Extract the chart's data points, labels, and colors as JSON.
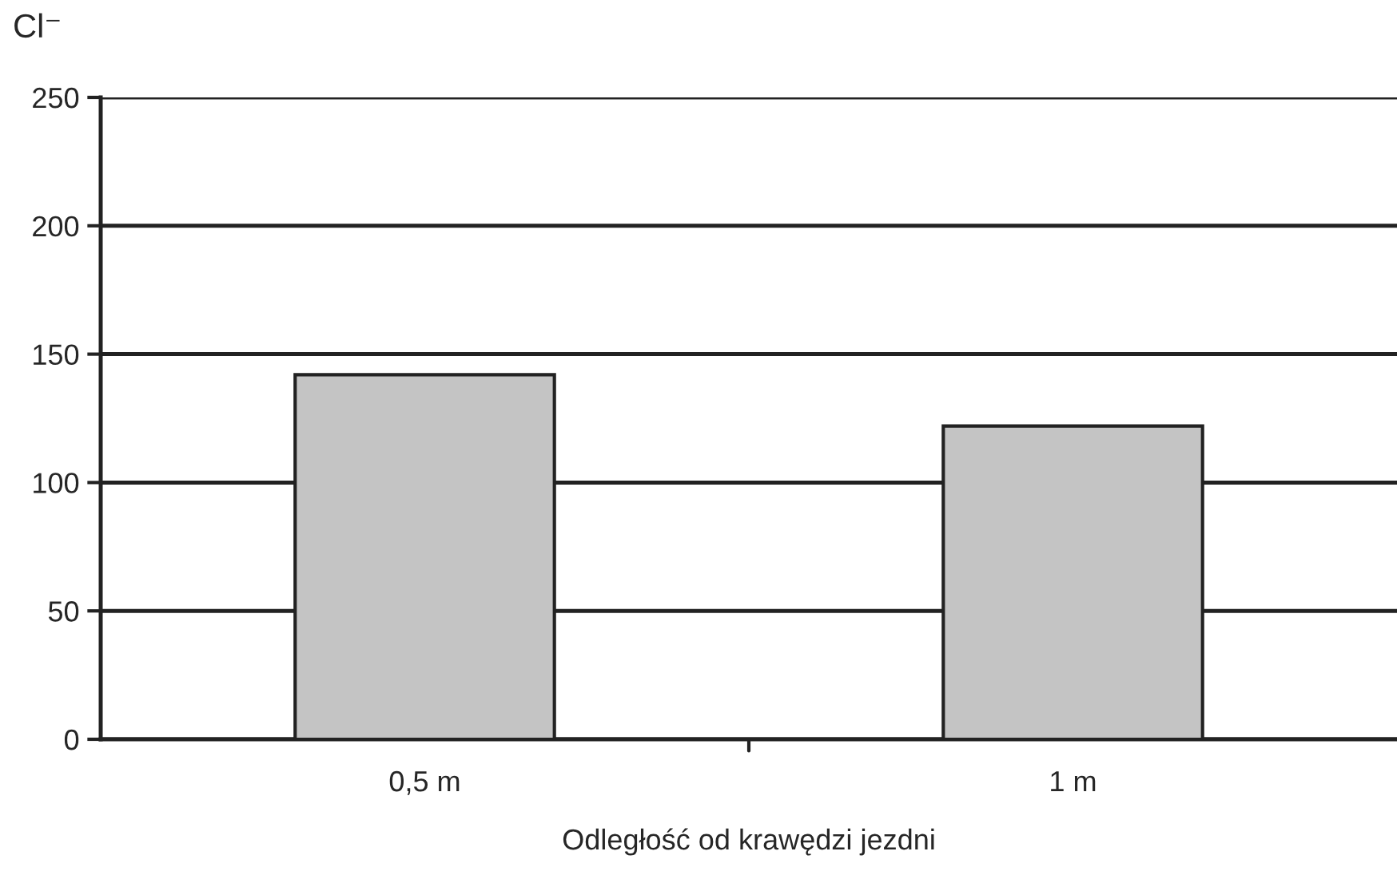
{
  "chart_data": {
    "type": "bar",
    "ylabel": "Cl⁻",
    "xlabel": "Odległość od krawędzi jezdni",
    "categories": [
      "0,5 m",
      "1 m"
    ],
    "values": [
      142,
      122
    ],
    "color": "#c4c4c4",
    "ylim": [
      0,
      250
    ],
    "yticks": [
      0,
      50,
      100,
      150,
      200,
      250
    ],
    "grid": "y",
    "legend": false
  }
}
